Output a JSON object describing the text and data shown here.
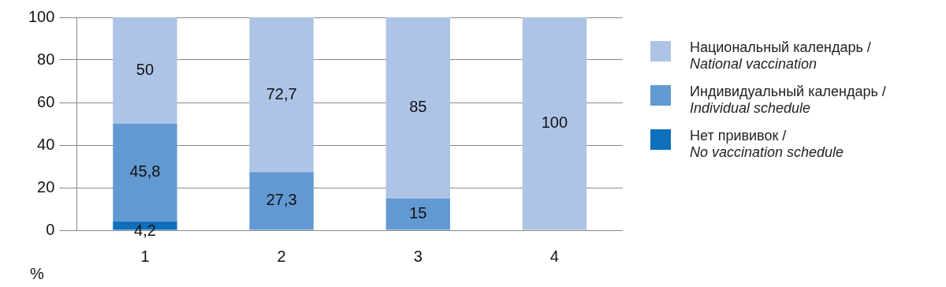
{
  "chart_data": {
    "type": "bar",
    "stacked": true,
    "ylabel": "%",
    "categories": [
      "1",
      "2",
      "3",
      "4"
    ],
    "series": [
      {
        "name": "Нет прививок / No vaccination schedule",
        "color": "#0e6fba",
        "values": [
          4.2,
          null,
          null,
          null
        ],
        "value_labels": [
          "4,2",
          null,
          null,
          null
        ]
      },
      {
        "name": "Индивидуальный календарь / Individual schedule",
        "color": "#6399d2",
        "values": [
          45.8,
          27.3,
          15,
          null
        ],
        "value_labels": [
          "45,8",
          "27,3",
          "15",
          null
        ]
      },
      {
        "name": "Национальный календарь / National vaccination",
        "color": "#adc4e6",
        "values": [
          50,
          72.7,
          85,
          100
        ],
        "value_labels": [
          "50",
          "72,7",
          "85",
          "100"
        ]
      }
    ],
    "ylim": [
      0,
      100
    ],
    "yticks": [
      0,
      20,
      40,
      60,
      80,
      100
    ],
    "grid": "y",
    "legend": "right"
  }
}
